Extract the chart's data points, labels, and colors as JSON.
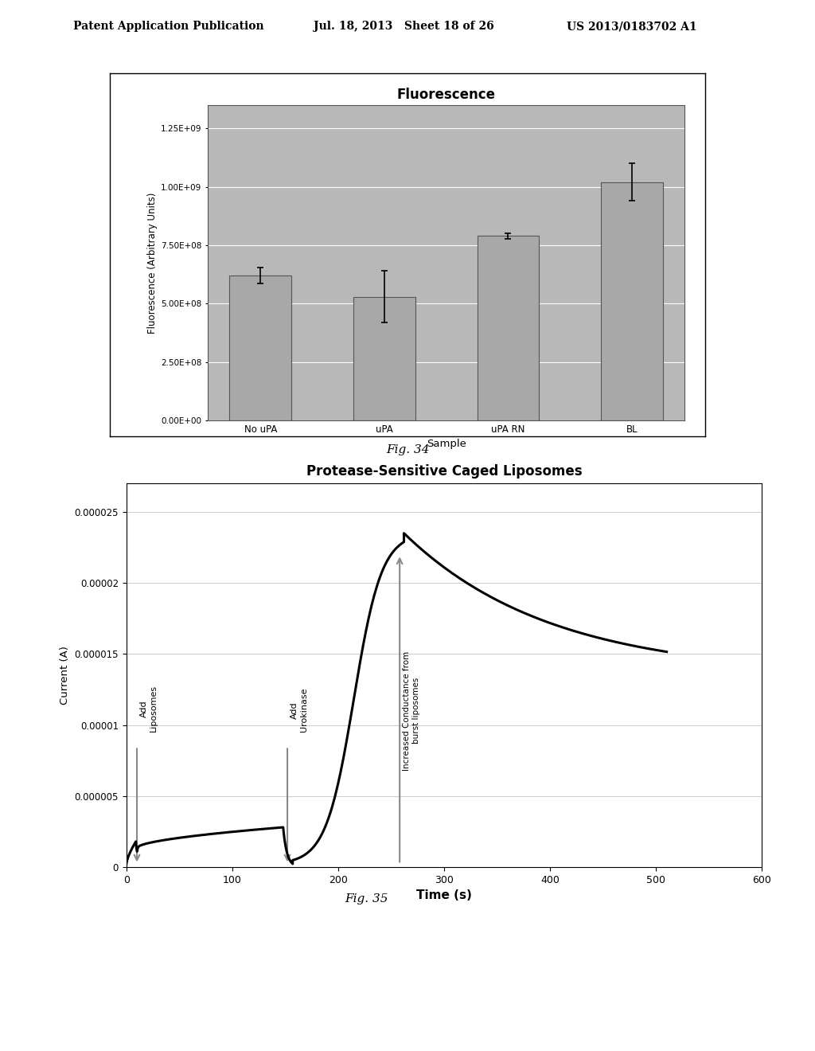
{
  "fig34": {
    "title": "Fluorescence",
    "categories": [
      "No uPA",
      "uPA",
      "uPA RN",
      "BL"
    ],
    "values": [
      620000000.0,
      530000000.0,
      790000000.0,
      1020000000.0
    ],
    "errors": [
      35000000.0,
      110000000.0,
      12000000.0,
      80000000.0
    ],
    "bar_color": "#a8a8a8",
    "bar_edge": "#555555",
    "bg_color": "#b8b8b8",
    "ylabel": "Fluorescence (Arbitrary Units)",
    "xlabel": "Sample",
    "ylim": [
      0,
      1350000000.0
    ],
    "yticks": [
      0,
      250000000.0,
      500000000.0,
      750000000.0,
      1000000000.0,
      1250000000.0
    ],
    "ytick_labels": [
      "0.00E+00",
      "2.50E+08",
      "5.00E+08",
      "7.50E+08",
      "1.00E+09",
      "1.25E+09"
    ]
  },
  "fig35": {
    "title": "Protease-Sensitive Caged Liposomes",
    "xlabel": "Time (s)",
    "ylabel": "Current (A)",
    "xlim": [
      0,
      600
    ],
    "ylim": [
      0,
      2.7e-05
    ],
    "yticks": [
      0,
      5e-06,
      1e-05,
      1.5e-05,
      2e-05,
      2.5e-05
    ],
    "ytick_labels": [
      "0",
      "0.000005",
      "0.00001",
      "0.000015",
      "0.00002",
      "0.000025"
    ],
    "xticks": [
      0,
      100,
      200,
      300,
      400,
      500,
      600
    ],
    "curve_color": "#000000",
    "arrow_color": "#888888"
  },
  "header_text": "Patent Application Publication",
  "header_date": "Jul. 18, 2013   Sheet 18 of 26",
  "header_patent": "US 2013/0183702 A1",
  "fig34_caption": "Fig. 34",
  "fig35_caption": "Fig. 35"
}
